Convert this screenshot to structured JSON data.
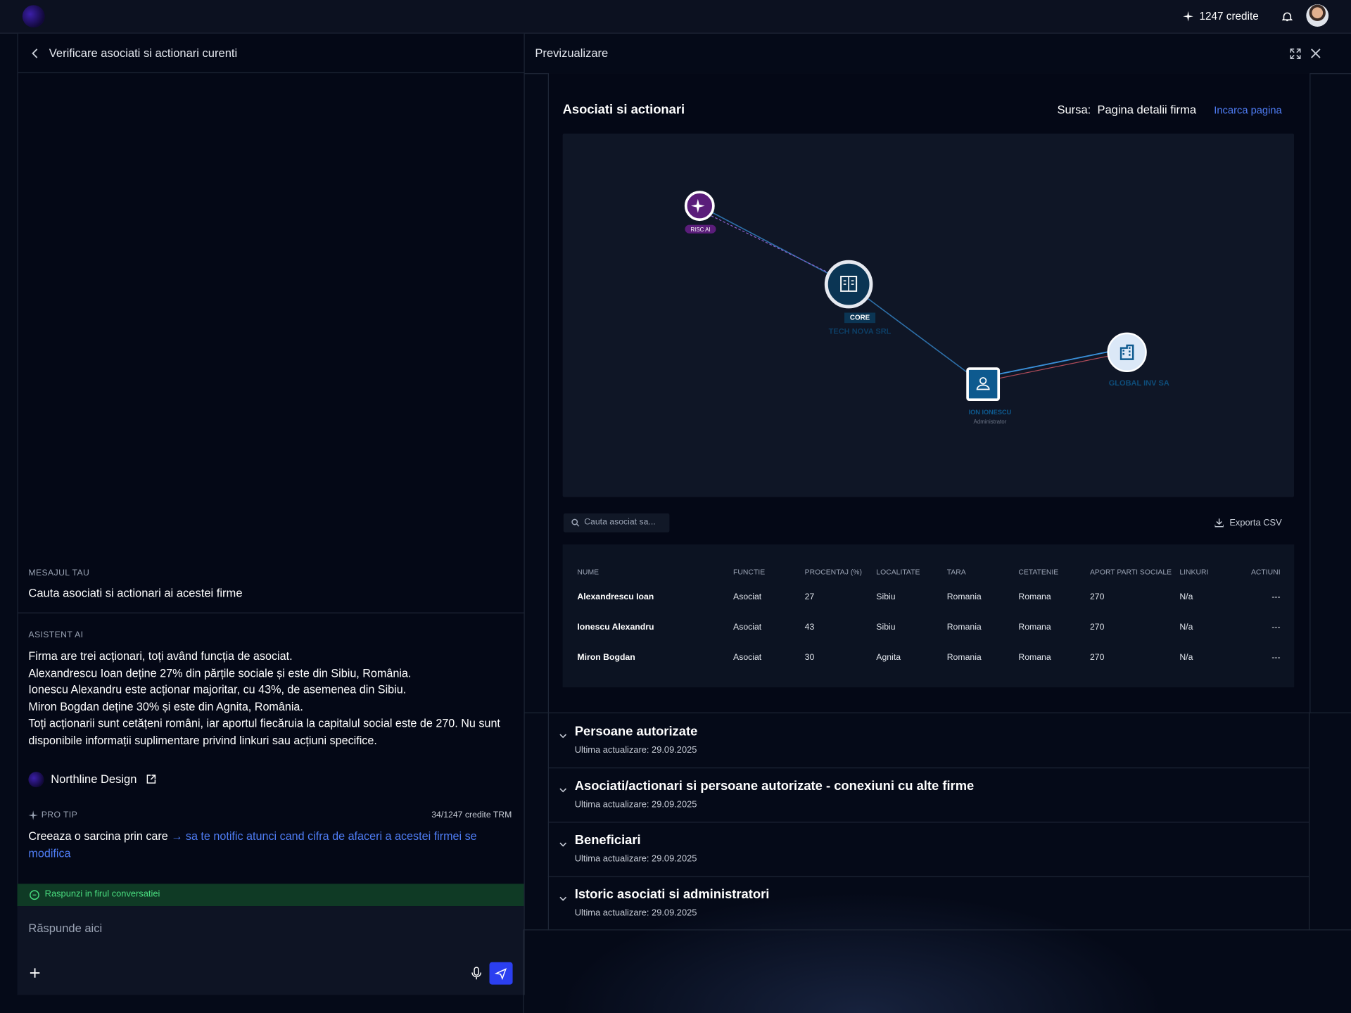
{
  "header": {
    "credits": "1247 credite"
  },
  "left": {
    "title": "Verificare asociati si actionari curenti",
    "message_label": "Mesajul tau",
    "message": "Cauta asociati si actionari ai acestei firme",
    "assistant_label": "Asistent AI",
    "assistant_lines": [
      "Firma are trei acționari, toți având funcția de asociat.",
      "Alexandrescu Ioan deține 27% din părțile sociale și este din Sibiu, România.",
      "Ionescu Alexandru este acționar majoritar, cu 43%, de asemenea din Sibiu.",
      "Miron Bogdan deține 30% și este din Agnita, România.",
      "Toți acționarii sunt cetățeni români, iar aportul fiecăruia la capitalul social este de 270. Nu sunt disponibile informații suplimentare privind linkuri sau acțiuni specifice."
    ],
    "source_name": "Northline Design",
    "pro_tip_label": "Pro tip",
    "pro_tip_credits": "34/1247 credite TRM",
    "tip_text": "Creeaza o sarcina prin care ",
    "tip_link": "→ sa te notific atunci cand cifra de afaceri a acestei firmei  se modifica",
    "thread_note": "Raspunzi in firul conversatiei",
    "input_placeholder": "Răspunde aici"
  },
  "right": {
    "title": "Previzualizare",
    "section_title": "Asociati si actionari",
    "source_label": "Sursa:",
    "source_value": "Pagina detalii firma",
    "load_link": "Incarca pagina",
    "graph": {
      "risk": "RISC AI",
      "core": "CORE",
      "company": "TECH NOVA SRL",
      "person": "ION IONESCU",
      "person_role": "Administrator",
      "partner": "GLOBAL INV SA"
    },
    "search_placeholder": "Cauta asociat sa...",
    "export": "Exporta CSV",
    "table": {
      "headers": [
        "Nume",
        "Functie",
        "Procentaj (%)",
        "Localitate",
        "Tara",
        "Cetatenie",
        "Aport parti sociale",
        "Linkuri",
        "Actiuni"
      ],
      "rows": [
        [
          "Alexandrescu Ioan",
          "Asociat",
          27,
          "Sibiu",
          "Romania",
          "Romana",
          270,
          "N/a",
          "---"
        ],
        [
          "Ionescu Alexandru",
          "Asociat",
          43,
          "Sibiu",
          "Romania",
          "Romana",
          270,
          "N/a",
          "---"
        ],
        [
          "Miron Bogdan",
          "Asociat",
          30,
          "Agnita",
          "Romania",
          "Romana",
          270,
          "N/a",
          "---"
        ]
      ]
    },
    "sections": [
      {
        "title": "Persoane autorizate",
        "updated": "Ultima actualizare: 29.09.2025"
      },
      {
        "title": "Asociati/actionari si persoane autorizate - conexiuni cu alte firme",
        "updated": "Ultima actualizare: 29.09.2025"
      },
      {
        "title": "Beneficiari",
        "updated": "Ultima actualizare: 29.09.2025"
      },
      {
        "title": "Istoric asociati si administratori",
        "updated": "Ultima actualizare: 29.09.2025"
      }
    ]
  }
}
